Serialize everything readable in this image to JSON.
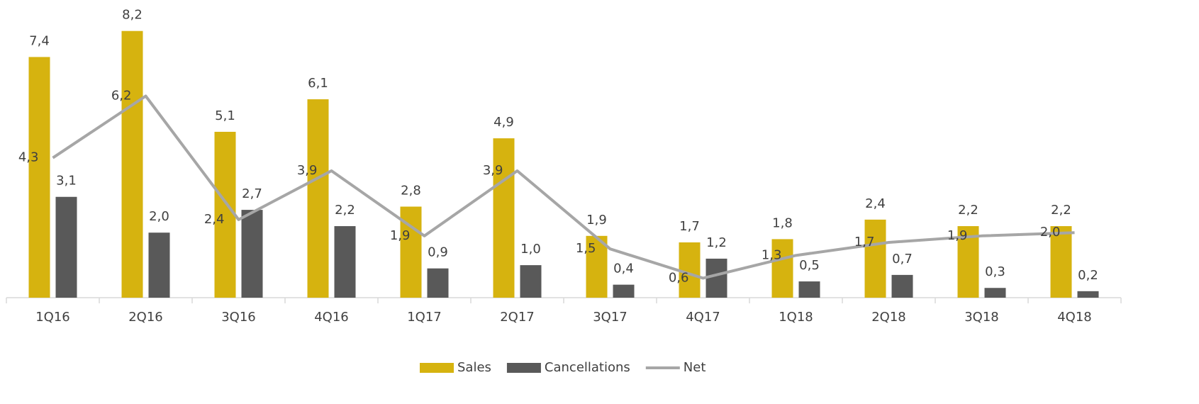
{
  "chart_data": {
    "type": "bar_line",
    "categories": [
      "1Q16",
      "2Q16",
      "3Q16",
      "4Q16",
      "1Q17",
      "2Q17",
      "3Q17",
      "4Q17",
      "1Q18",
      "2Q18",
      "3Q18",
      "4Q18"
    ],
    "ylim": [
      0,
      9
    ],
    "legend": "bottom",
    "series": [
      {
        "name": "Sales",
        "type": "bar",
        "color": "#d6b30f",
        "values": [
          7.4,
          8.2,
          5.1,
          6.1,
          2.8,
          4.9,
          1.9,
          1.7,
          1.8,
          2.4,
          2.2,
          2.2
        ],
        "value_labels": [
          "7,4",
          "8,2",
          "5,1",
          "6,1",
          "2,8",
          "4,9",
          "1,9",
          "1,7",
          "1,8",
          "2,4",
          "2,2",
          "2,2"
        ]
      },
      {
        "name": "Cancellations",
        "type": "bar",
        "color": "#595959",
        "values": [
          3.1,
          2.0,
          2.7,
          2.2,
          0.9,
          1.0,
          0.4,
          1.2,
          0.5,
          0.7,
          0.3,
          0.2
        ],
        "value_labels": [
          "3,1",
          "2,0",
          "2,7",
          "2,2",
          "0,9",
          "1,0",
          "0,4",
          "1,2",
          "0,5",
          "0,7",
          "0,3",
          "0,2"
        ]
      },
      {
        "name": "Net",
        "type": "line",
        "color": "#a6a6a6",
        "values": [
          4.3,
          6.2,
          2.4,
          3.9,
          1.9,
          3.9,
          1.5,
          0.6,
          1.3,
          1.7,
          1.9,
          2.0
        ],
        "value_labels": [
          "4,3",
          "6,2",
          "2,4",
          "3,9",
          "1,9",
          "3,9",
          "1,5",
          "0,6",
          "1,3",
          "1,7",
          "1,9",
          "2,0"
        ]
      }
    ]
  }
}
